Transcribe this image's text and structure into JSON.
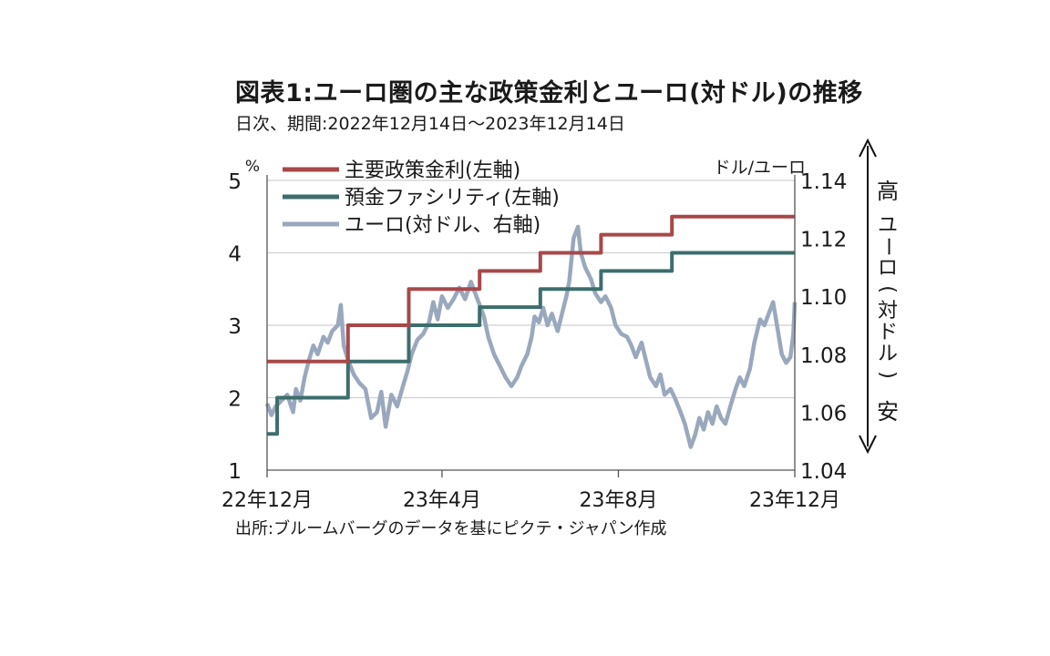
{
  "title": "図表1:ユーロ圏の主な政策金利とユーロ(対ドル)の推移",
  "subtitle": "日次、期間:2022年12月14日〜2023年12月14日",
  "source": "出所:ブルームバーグのデータを基にピクテ・ジャパン作成",
  "annotations": {
    "high": "高",
    "low": "安",
    "vertical_label": [
      "ユ",
      "ー",
      "ロ",
      "(",
      "対",
      "ド",
      "ル",
      ")"
    ]
  },
  "chart_data": {
    "type": "line",
    "ylabel_left": "%",
    "ylabel_right": "ドル/ユーロ",
    "ylim_left": [
      1,
      5
    ],
    "ylim_right": [
      1.04,
      1.14
    ],
    "yticks_left": [
      1,
      2,
      3,
      4,
      5
    ],
    "yticks_right": [
      1.04,
      1.06,
      1.08,
      1.1,
      1.12,
      1.14
    ],
    "xlim": [
      "2022-12-14",
      "2023-12-14"
    ],
    "xticks": [
      {
        "date": "2022-12-14",
        "label": "22年12月"
      },
      {
        "date": "2023-04-14",
        "label": "23年4月"
      },
      {
        "date": "2023-08-14",
        "label": "23年8月"
      },
      {
        "date": "2023-12-14",
        "label": "23年12月"
      }
    ],
    "grid": "horizontal",
    "legend_position": "top-left",
    "series": [
      {
        "name": "主要政策金利(左軸)",
        "axis": "left",
        "color": "#a8484a",
        "step": true,
        "points": [
          [
            "2022-12-14",
            2.5
          ],
          [
            "2022-12-21",
            2.5
          ],
          [
            "2023-02-08",
            3.0
          ],
          [
            "2023-03-22",
            3.5
          ],
          [
            "2023-05-10",
            3.75
          ],
          [
            "2023-06-21",
            4.0
          ],
          [
            "2023-08-02",
            4.25
          ],
          [
            "2023-09-20",
            4.5
          ],
          [
            "2023-12-14",
            4.5
          ]
        ]
      },
      {
        "name": "預金ファシリティ(左軸)",
        "axis": "left",
        "color": "#3d6e6c",
        "step": true,
        "points": [
          [
            "2022-12-14",
            1.5
          ],
          [
            "2022-12-15",
            1.5
          ],
          [
            "2022-12-21",
            2.0
          ],
          [
            "2023-02-08",
            2.5
          ],
          [
            "2023-03-22",
            3.0
          ],
          [
            "2023-05-10",
            3.25
          ],
          [
            "2023-06-21",
            3.5
          ],
          [
            "2023-08-02",
            3.75
          ],
          [
            "2023-09-20",
            4.0
          ],
          [
            "2023-12-14",
            4.0
          ]
        ]
      },
      {
        "name": "ユーロ(対ドル、右軸)",
        "axis": "right",
        "color": "#9aa8bd",
        "step": false,
        "points": [
          [
            "2022-12-14",
            1.063
          ],
          [
            "2022-12-17",
            1.059
          ],
          [
            "2022-12-20",
            1.062
          ],
          [
            "2022-12-24",
            1.064
          ],
          [
            "2022-12-28",
            1.066
          ],
          [
            "2023-01-01",
            1.06
          ],
          [
            "2023-01-03",
            1.068
          ],
          [
            "2023-01-06",
            1.064
          ],
          [
            "2023-01-09",
            1.072
          ],
          [
            "2023-01-12",
            1.078
          ],
          [
            "2023-01-15",
            1.083
          ],
          [
            "2023-01-18",
            1.08
          ],
          [
            "2023-01-22",
            1.086
          ],
          [
            "2023-01-25",
            1.084
          ],
          [
            "2023-01-28",
            1.088
          ],
          [
            "2023-02-01",
            1.09
          ],
          [
            "2023-02-03",
            1.097
          ],
          [
            "2023-02-05",
            1.083
          ],
          [
            "2023-02-08",
            1.078
          ],
          [
            "2023-02-12",
            1.073
          ],
          [
            "2023-02-16",
            1.07
          ],
          [
            "2023-02-20",
            1.068
          ],
          [
            "2023-02-24",
            1.058
          ],
          [
            "2023-02-28",
            1.06
          ],
          [
            "2023-03-03",
            1.067
          ],
          [
            "2023-03-06",
            1.055
          ],
          [
            "2023-03-10",
            1.066
          ],
          [
            "2023-03-14",
            1.062
          ],
          [
            "2023-03-18",
            1.069
          ],
          [
            "2023-03-21",
            1.074
          ],
          [
            "2023-03-24",
            1.08
          ],
          [
            "2023-03-28",
            1.085
          ],
          [
            "2023-04-01",
            1.087
          ],
          [
            "2023-04-05",
            1.091
          ],
          [
            "2023-04-08",
            1.098
          ],
          [
            "2023-04-11",
            1.092
          ],
          [
            "2023-04-14",
            1.1
          ],
          [
            "2023-04-18",
            1.096
          ],
          [
            "2023-04-22",
            1.099
          ],
          [
            "2023-04-26",
            1.103
          ],
          [
            "2023-04-30",
            1.099
          ],
          [
            "2023-05-04",
            1.105
          ],
          [
            "2023-05-07",
            1.101
          ],
          [
            "2023-05-10",
            1.097
          ],
          [
            "2023-05-13",
            1.093
          ],
          [
            "2023-05-16",
            1.086
          ],
          [
            "2023-05-20",
            1.08
          ],
          [
            "2023-05-24",
            1.076
          ],
          [
            "2023-05-28",
            1.072
          ],
          [
            "2023-06-01",
            1.069
          ],
          [
            "2023-06-05",
            1.072
          ],
          [
            "2023-06-08",
            1.076
          ],
          [
            "2023-06-12",
            1.08
          ],
          [
            "2023-06-15",
            1.086
          ],
          [
            "2023-06-17",
            1.093
          ],
          [
            "2023-06-20",
            1.091
          ],
          [
            "2023-06-23",
            1.096
          ],
          [
            "2023-06-26",
            1.09
          ],
          [
            "2023-06-29",
            1.094
          ],
          [
            "2023-07-03",
            1.088
          ],
          [
            "2023-07-06",
            1.094
          ],
          [
            "2023-07-09",
            1.1
          ],
          [
            "2023-07-11",
            1.105
          ],
          [
            "2023-07-14",
            1.12
          ],
          [
            "2023-07-17",
            1.124
          ],
          [
            "2023-07-19",
            1.115
          ],
          [
            "2023-07-22",
            1.11
          ],
          [
            "2023-07-26",
            1.106
          ],
          [
            "2023-07-29",
            1.101
          ],
          [
            "2023-08-02",
            1.098
          ],
          [
            "2023-08-05",
            1.1
          ],
          [
            "2023-08-09",
            1.096
          ],
          [
            "2023-08-12",
            1.09
          ],
          [
            "2023-08-16",
            1.087
          ],
          [
            "2023-08-20",
            1.086
          ],
          [
            "2023-08-23",
            1.083
          ],
          [
            "2023-08-26",
            1.079
          ],
          [
            "2023-08-30",
            1.084
          ],
          [
            "2023-09-02",
            1.078
          ],
          [
            "2023-09-05",
            1.072
          ],
          [
            "2023-09-09",
            1.069
          ],
          [
            "2023-09-12",
            1.073
          ],
          [
            "2023-09-15",
            1.066
          ],
          [
            "2023-09-19",
            1.068
          ],
          [
            "2023-09-22",
            1.065
          ],
          [
            "2023-09-26",
            1.06
          ],
          [
            "2023-09-29",
            1.056
          ],
          [
            "2023-10-03",
            1.048
          ],
          [
            "2023-10-06",
            1.052
          ],
          [
            "2023-10-09",
            1.058
          ],
          [
            "2023-10-12",
            1.054
          ],
          [
            "2023-10-15",
            1.06
          ],
          [
            "2023-10-18",
            1.056
          ],
          [
            "2023-10-21",
            1.062
          ],
          [
            "2023-10-24",
            1.058
          ],
          [
            "2023-10-27",
            1.056
          ],
          [
            "2023-10-31",
            1.063
          ],
          [
            "2023-11-03",
            1.068
          ],
          [
            "2023-11-06",
            1.072
          ],
          [
            "2023-11-09",
            1.069
          ],
          [
            "2023-11-13",
            1.075
          ],
          [
            "2023-11-16",
            1.084
          ],
          [
            "2023-11-20",
            1.092
          ],
          [
            "2023-11-23",
            1.09
          ],
          [
            "2023-11-26",
            1.094
          ],
          [
            "2023-11-29",
            1.098
          ],
          [
            "2023-12-02",
            1.089
          ],
          [
            "2023-12-05",
            1.08
          ],
          [
            "2023-12-08",
            1.077
          ],
          [
            "2023-12-11",
            1.079
          ],
          [
            "2023-12-13",
            1.087
          ],
          [
            "2023-12-14",
            1.098
          ]
        ]
      }
    ]
  }
}
